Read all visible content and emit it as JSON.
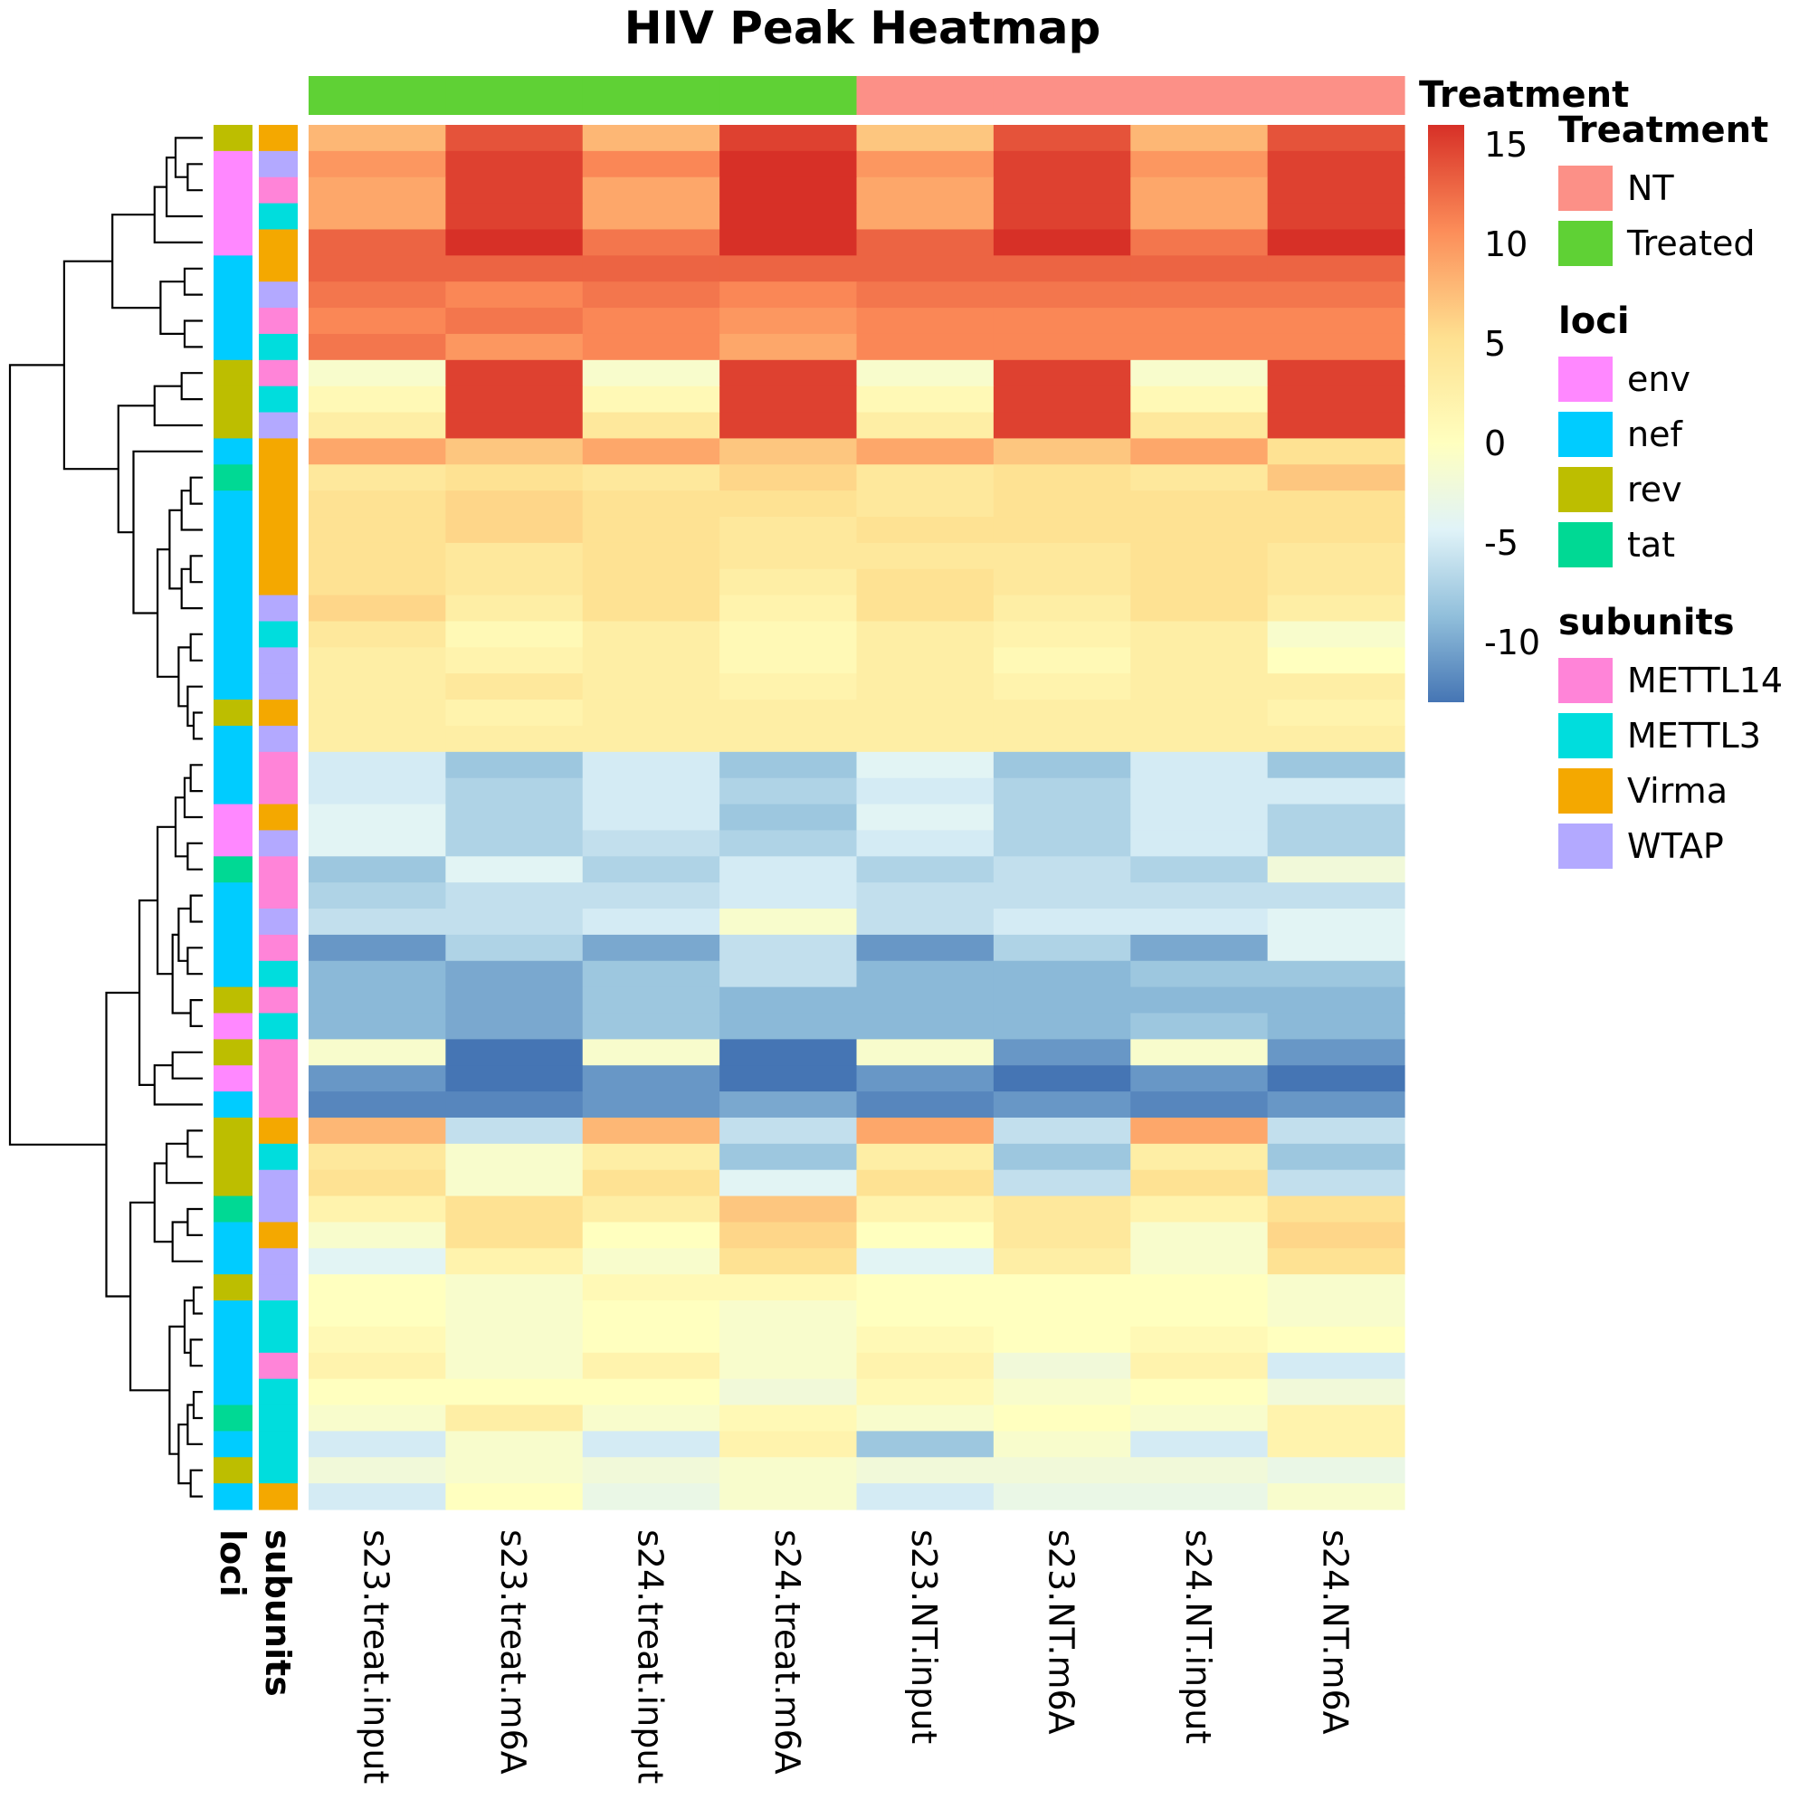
{
  "colors": {
    "Treated": "#5FD135",
    "NT": "#FC9087",
    "env": "#FF88FF",
    "nef": "#00CCFF",
    "rev": "#BDBE00",
    "tat": "#00D994",
    "METTL14": "#FF84D8",
    "METTL3": "#00DDDD",
    "Virma": "#F4A800",
    "WTAP": "#B3A9FF",
    "scale": [
      "#4575B4",
      "#91BFDB",
      "#E0F3F8",
      "#FFFFBF",
      "#FEE090",
      "#FC8D59",
      "#D73027"
    ]
  },
  "chart_data": {
    "type": "heatmap",
    "title": "HIV Peak Heatmap",
    "columns": [
      "s23.treat.input",
      "s23.treat.m6A",
      "s24.treat.input",
      "s24.treat.m6A",
      "s23.NT.input",
      "s23.NT.m6A",
      "s24.NT.input",
      "s24.NT.m6A"
    ],
    "column_treatment": [
      "Treated",
      "Treated",
      "Treated",
      "Treated",
      "NT",
      "NT",
      "NT",
      "NT"
    ],
    "color_range": [
      -13,
      16
    ],
    "colorbar_ticks": [
      "15",
      "10",
      "5",
      "0",
      "-5",
      "-10"
    ],
    "colorbar_tick_values": [
      15,
      10,
      5,
      0,
      -5,
      -10
    ],
    "values": [
      [
        8,
        14,
        8,
        15,
        7,
        14,
        8,
        14
      ],
      [
        10,
        15,
        11,
        16,
        10,
        15,
        10,
        15
      ],
      [
        9,
        15,
        9,
        16,
        9,
        15,
        9,
        15
      ],
      [
        9,
        15,
        9,
        16,
        9,
        15,
        9,
        15
      ],
      [
        13,
        16,
        12,
        16,
        13,
        16,
        12,
        16
      ],
      [
        13,
        13,
        13,
        13,
        13,
        13,
        13,
        13
      ],
      [
        12,
        11,
        12,
        11,
        12,
        12,
        12,
        12
      ],
      [
        11,
        12,
        11,
        10,
        11,
        11,
        11,
        11
      ],
      [
        12,
        10,
        11,
        9,
        11,
        11,
        11,
        11
      ],
      [
        -1,
        15,
        -1,
        15,
        -1,
        15,
        -1,
        15
      ],
      [
        1,
        15,
        1,
        15,
        1,
        15,
        1,
        15
      ],
      [
        3,
        15,
        4,
        15,
        3,
        15,
        4,
        15
      ],
      [
        9,
        7,
        9,
        7,
        9,
        7,
        9,
        5
      ],
      [
        4,
        5,
        4,
        6,
        4,
        5,
        4,
        7
      ],
      [
        5,
        6,
        5,
        5,
        4,
        5,
        5,
        5
      ],
      [
        5,
        6,
        5,
        4,
        5,
        5,
        5,
        5
      ],
      [
        5,
        4,
        5,
        4,
        4,
        4,
        5,
        4
      ],
      [
        5,
        4,
        5,
        3,
        5,
        4,
        5,
        4
      ],
      [
        6,
        3,
        5,
        2,
        5,
        3,
        5,
        3
      ],
      [
        4,
        1,
        3,
        1,
        3,
        2,
        3,
        -1
      ],
      [
        3,
        2,
        3,
        1,
        3,
        1,
        3,
        0
      ],
      [
        3,
        4,
        3,
        2,
        3,
        2,
        3,
        3
      ],
      [
        3,
        2,
        3,
        3,
        3,
        3,
        3,
        2
      ],
      [
        3,
        3,
        3,
        3,
        3,
        3,
        3,
        3
      ],
      [
        -5,
        -8,
        -5,
        -8,
        -4,
        -8,
        -5,
        -8
      ],
      [
        -5,
        -7,
        -5,
        -7,
        -5,
        -7,
        -5,
        -5
      ],
      [
        -4,
        -7,
        -5,
        -8,
        -4,
        -7,
        -5,
        -7
      ],
      [
        -4,
        -7,
        -6,
        -7,
        -5,
        -7,
        -5,
        -7
      ],
      [
        -8,
        -4,
        -7,
        -5,
        -7,
        -6,
        -7,
        -2
      ],
      [
        -7,
        -6,
        -6,
        -5,
        -6,
        -6,
        -6,
        -6
      ],
      [
        -6,
        -6,
        -5,
        -1,
        -6,
        -5,
        -5,
        -4
      ],
      [
        -11,
        -7,
        -10,
        -6,
        -11,
        -7,
        -10,
        -4
      ],
      [
        -9,
        -10,
        -8,
        -6,
        -9,
        -9,
        -8,
        -8
      ],
      [
        -9,
        -10,
        -8,
        -9,
        -9,
        -9,
        -9,
        -9
      ],
      [
        -9,
        -10,
        -8,
        -9,
        -9,
        -9,
        -8,
        -9
      ],
      [
        -1,
        -13,
        -1,
        -13,
        -1,
        -11,
        -1,
        -11
      ],
      [
        -11,
        -13,
        -11,
        -13,
        -11,
        -13,
        -11,
        -13
      ],
      [
        -12,
        -12,
        -11,
        -10,
        -12,
        -11,
        -12,
        -11
      ],
      [
        8,
        -6,
        8,
        -6,
        9,
        -6,
        9,
        -6
      ],
      [
        4,
        -1,
        3,
        -8,
        3,
        -8,
        3,
        -8
      ],
      [
        5,
        -1,
        5,
        -4,
        5,
        -6,
        5,
        -6
      ],
      [
        2,
        5,
        3,
        7,
        2,
        4,
        2,
        5
      ],
      [
        -1,
        5,
        0,
        6,
        0,
        4,
        -1,
        6
      ],
      [
        -4,
        2,
        -1,
        5,
        -4,
        3,
        -1,
        5
      ],
      [
        0,
        -1,
        1,
        1,
        0,
        0,
        0,
        -1
      ],
      [
        0,
        -1,
        0,
        -1,
        0,
        0,
        0,
        -1
      ],
      [
        1,
        -1,
        0,
        -1,
        1,
        0,
        1,
        0
      ],
      [
        2,
        -1,
        2,
        -1,
        2,
        -2,
        2,
        -5
      ],
      [
        0,
        0,
        0,
        -2,
        1,
        -1,
        0,
        -2
      ],
      [
        -1,
        3,
        -1,
        1,
        -1,
        0,
        -1,
        2
      ],
      [
        -5,
        -1,
        -5,
        2,
        -8,
        -1,
        -5,
        2
      ],
      [
        -2,
        -1,
        -2,
        -1,
        -2,
        -2,
        -2,
        -3
      ],
      [
        -5,
        0,
        -3,
        -1,
        -5,
        -3,
        -3,
        -1
      ]
    ],
    "row_loci": [
      "rev",
      "env",
      "env",
      "env",
      "env",
      "nef",
      "nef",
      "nef",
      "nef",
      "rev",
      "rev",
      "rev",
      "nef",
      "tat",
      "nef",
      "nef",
      "nef",
      "nef",
      "nef",
      "nef",
      "nef",
      "nef",
      "rev",
      "nef",
      "nef",
      "nef",
      "env",
      "env",
      "tat",
      "nef",
      "nef",
      "nef",
      "nef",
      "rev",
      "env",
      "rev",
      "env",
      "nef",
      "rev",
      "rev",
      "rev",
      "tat",
      "nef",
      "nef",
      "rev",
      "nef",
      "nef",
      "nef",
      "nef",
      "tat",
      "nef",
      "rev",
      "nef"
    ],
    "row_subunits": [
      "Virma",
      "WTAP",
      "METTL14",
      "METTL3",
      "Virma",
      "Virma",
      "WTAP",
      "METTL14",
      "METTL3",
      "METTL14",
      "METTL3",
      "WTAP",
      "Virma",
      "Virma",
      "Virma",
      "Virma",
      "Virma",
      "Virma",
      "WTAP",
      "METTL3",
      "WTAP",
      "WTAP",
      "Virma",
      "WTAP",
      "METTL14",
      "METTL14",
      "Virma",
      "WTAP",
      "METTL14",
      "METTL14",
      "WTAP",
      "METTL14",
      "METTL3",
      "METTL14",
      "METTL3",
      "METTL14",
      "METTL14",
      "METTL14",
      "Virma",
      "METTL3",
      "WTAP",
      "WTAP",
      "Virma",
      "WTAP",
      "WTAP",
      "METTL3",
      "METTL3",
      "METTL14",
      "METTL3",
      "METTL3",
      "METTL3",
      "METTL3",
      "Virma"
    ],
    "annotation_bar_labels": [
      "loci",
      "subunits"
    ],
    "top_annotation_label": "Treatment",
    "legends": [
      {
        "title": "Treatment",
        "items": [
          "NT",
          "Treated"
        ]
      },
      {
        "title": "loci",
        "items": [
          "env",
          "nef",
          "rev",
          "tat"
        ]
      },
      {
        "title": "subunits",
        "items": [
          "METTL14",
          "METTL3",
          "Virma",
          "WTAP"
        ]
      }
    ],
    "row_clustering": "dendrogram",
    "legend_position": "right"
  }
}
